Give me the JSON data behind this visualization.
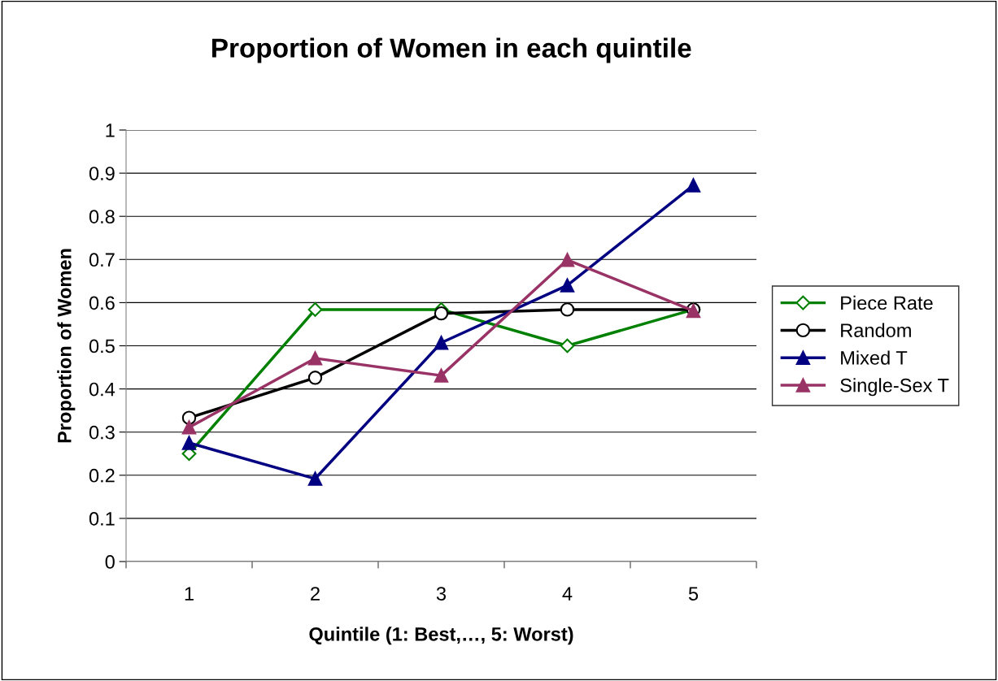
{
  "chart_data": {
    "type": "line",
    "title": "Proportion of Women in each quintile",
    "xlabel": "Quintile (1: Best,…, 5: Worst)",
    "ylabel": "Proportion of Women",
    "categories": [
      "1",
      "2",
      "3",
      "4",
      "5"
    ],
    "series": [
      {
        "name": "Piece Rate",
        "color": "#008000",
        "marker": "diamond",
        "values": [
          0.25,
          0.584,
          0.584,
          0.5,
          0.584
        ]
      },
      {
        "name": "Random",
        "color": "#000000",
        "marker": "circle",
        "values": [
          0.333,
          0.426,
          0.575,
          0.584,
          0.584
        ]
      },
      {
        "name": "Mixed T",
        "color": "#000080",
        "marker": "triangle",
        "values": [
          0.275,
          0.192,
          0.507,
          0.64,
          0.872
        ]
      },
      {
        "name": "Single-Sex T",
        "color": "#993366",
        "marker": "triangle",
        "values": [
          0.311,
          0.471,
          0.431,
          0.699,
          0.581
        ]
      }
    ],
    "ylim": [
      0,
      1
    ],
    "yticks": [
      0,
      0.1,
      0.2,
      0.3,
      0.4,
      0.5,
      0.6,
      0.7,
      0.8,
      0.9,
      1
    ],
    "grid": "y",
    "legend": "right",
    "line_style": "solid"
  }
}
